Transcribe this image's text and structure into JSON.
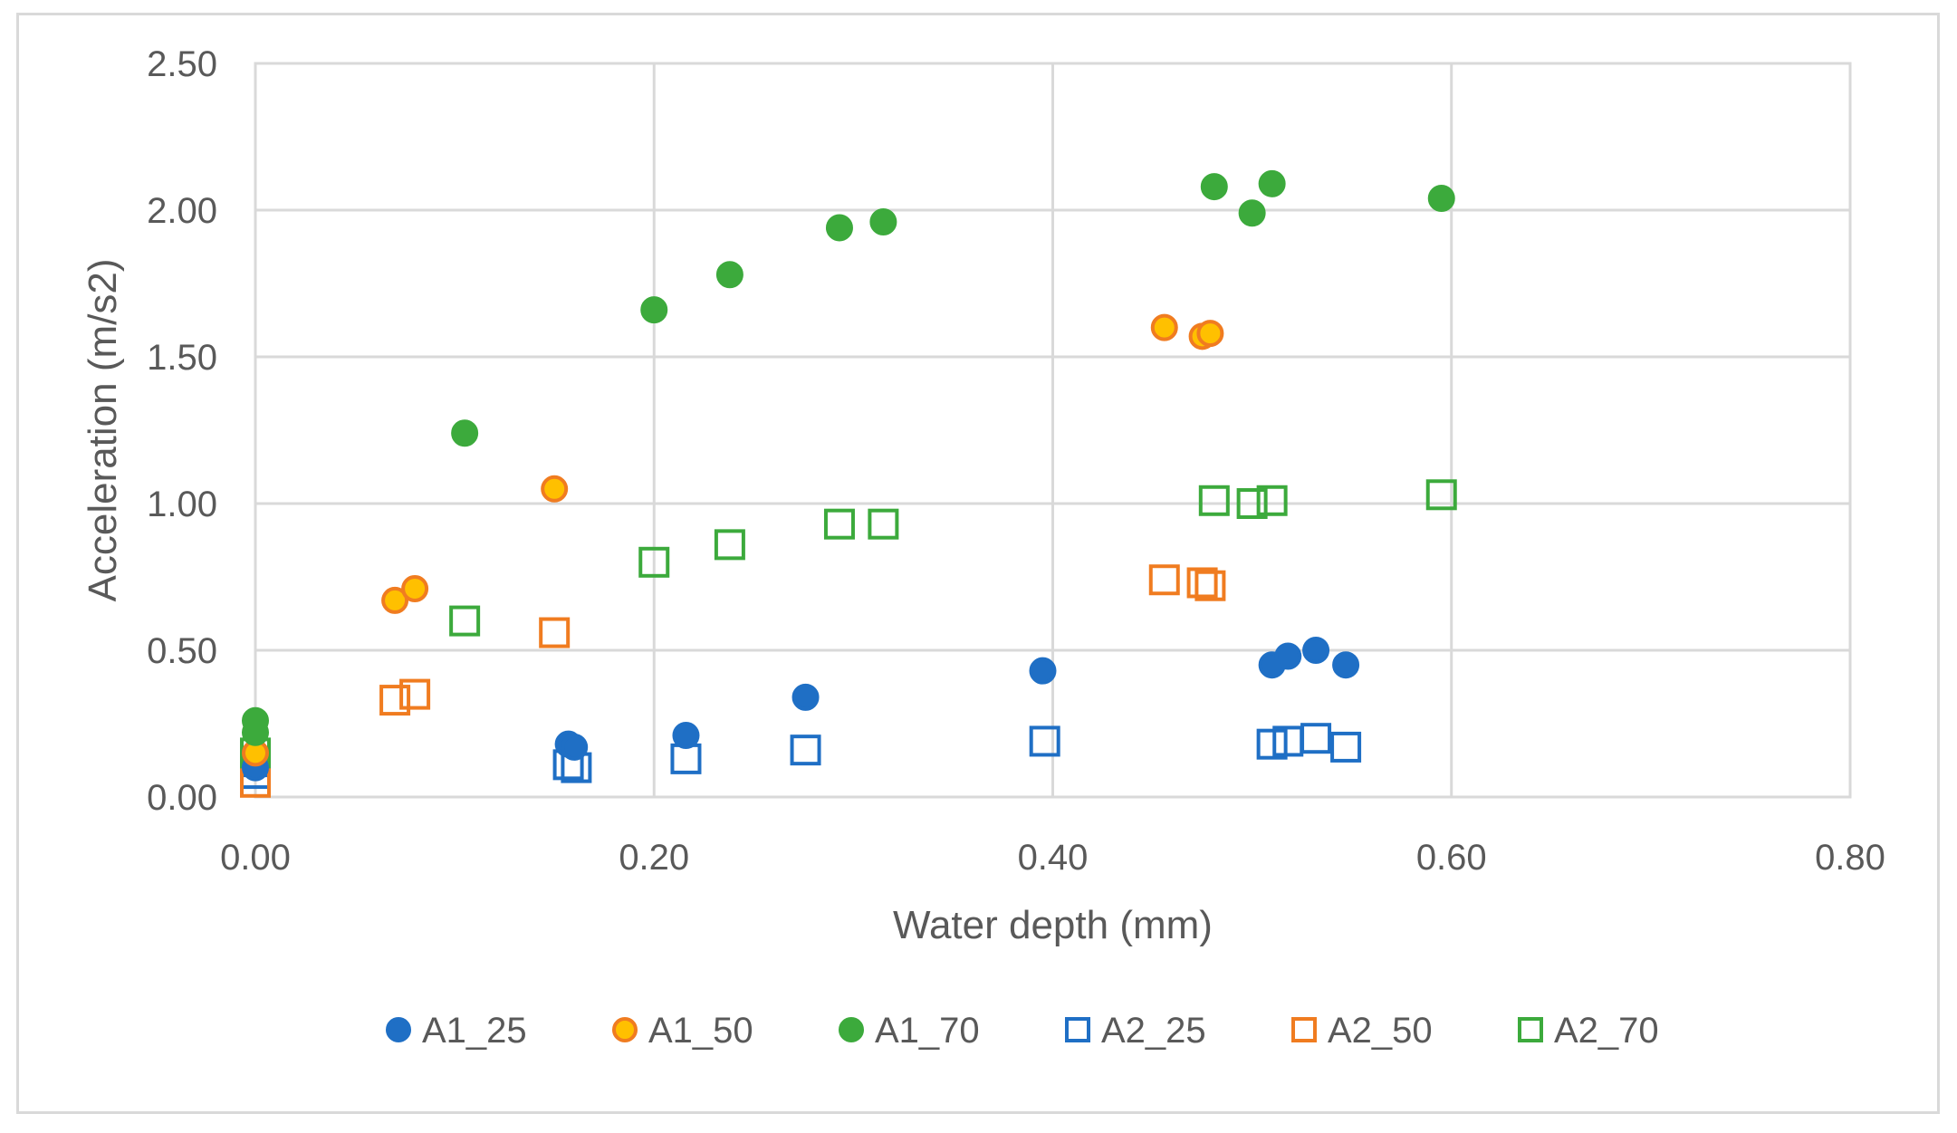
{
  "chart_data": {
    "type": "scatter",
    "title": "",
    "xlabel": "Water depth (mm)",
    "ylabel": "Acceleration (m/s2)",
    "xlim": [
      0,
      0.8
    ],
    "ylim": [
      0,
      2.5
    ],
    "xticks": [
      "0.00",
      "0.20",
      "0.40",
      "0.60",
      "0.80"
    ],
    "yticks": [
      "0.00",
      "0.50",
      "1.00",
      "1.50",
      "2.00",
      "2.50"
    ],
    "grid": true,
    "legend_position": "bottom",
    "series": [
      {
        "name": "A1_25",
        "marker": "circle-filled",
        "color": "#1f6fc5",
        "edge": "#1f6fc5",
        "points": [
          [
            0.0,
            0.1
          ],
          [
            0.157,
            0.18
          ],
          [
            0.16,
            0.17
          ],
          [
            0.216,
            0.21
          ],
          [
            0.276,
            0.34
          ],
          [
            0.395,
            0.43
          ],
          [
            0.51,
            0.45
          ],
          [
            0.518,
            0.48
          ],
          [
            0.532,
            0.5
          ],
          [
            0.547,
            0.45
          ]
        ]
      },
      {
        "name": "A1_50",
        "marker": "circle-filled",
        "color": "#ffc000",
        "edge": "#f07c20",
        "points": [
          [
            0.0,
            0.15
          ],
          [
            0.07,
            0.67
          ],
          [
            0.08,
            0.71
          ],
          [
            0.15,
            1.05
          ],
          [
            0.456,
            1.6
          ],
          [
            0.475,
            1.57
          ],
          [
            0.479,
            1.58
          ]
        ]
      },
      {
        "name": "A1_70",
        "marker": "circle-filled",
        "color": "#3caa3c",
        "edge": "#3caa3c",
        "points": [
          [
            0.0,
            0.26
          ],
          [
            0.0,
            0.22
          ],
          [
            0.105,
            1.24
          ],
          [
            0.2,
            1.66
          ],
          [
            0.238,
            1.78
          ],
          [
            0.293,
            1.94
          ],
          [
            0.315,
            1.96
          ],
          [
            0.481,
            2.08
          ],
          [
            0.5,
            1.99
          ],
          [
            0.51,
            2.09
          ],
          [
            0.595,
            2.04
          ]
        ]
      },
      {
        "name": "A2_25",
        "marker": "square-open",
        "color": "#1f6fc5",
        "edge": "#1f6fc5",
        "points": [
          [
            0.0,
            0.12
          ],
          [
            0.0,
            0.08
          ],
          [
            0.157,
            0.11
          ],
          [
            0.161,
            0.1
          ],
          [
            0.216,
            0.13
          ],
          [
            0.276,
            0.16
          ],
          [
            0.396,
            0.19
          ],
          [
            0.51,
            0.18
          ],
          [
            0.518,
            0.19
          ],
          [
            0.532,
            0.2
          ],
          [
            0.547,
            0.17
          ]
        ]
      },
      {
        "name": "A2_50",
        "marker": "square-open",
        "color": "#f07c20",
        "edge": "#f07c20",
        "points": [
          [
            0.0,
            0.05
          ],
          [
            0.07,
            0.33
          ],
          [
            0.08,
            0.35
          ],
          [
            0.15,
            0.56
          ],
          [
            0.456,
            0.74
          ],
          [
            0.475,
            0.73
          ],
          [
            0.479,
            0.72
          ]
        ]
      },
      {
        "name": "A2_70",
        "marker": "square-open",
        "color": "#3caa3c",
        "edge": "#3caa3c",
        "points": [
          [
            0.0,
            0.15
          ],
          [
            0.105,
            0.6
          ],
          [
            0.2,
            0.8
          ],
          [
            0.238,
            0.86
          ],
          [
            0.293,
            0.93
          ],
          [
            0.315,
            0.93
          ],
          [
            0.481,
            1.01
          ],
          [
            0.5,
            1.0
          ],
          [
            0.51,
            1.01
          ],
          [
            0.595,
            1.03
          ]
        ]
      }
    ]
  },
  "colors": {
    "grid": "#d9d9d9",
    "text": "#595959",
    "border": "#d9d9d9"
  }
}
